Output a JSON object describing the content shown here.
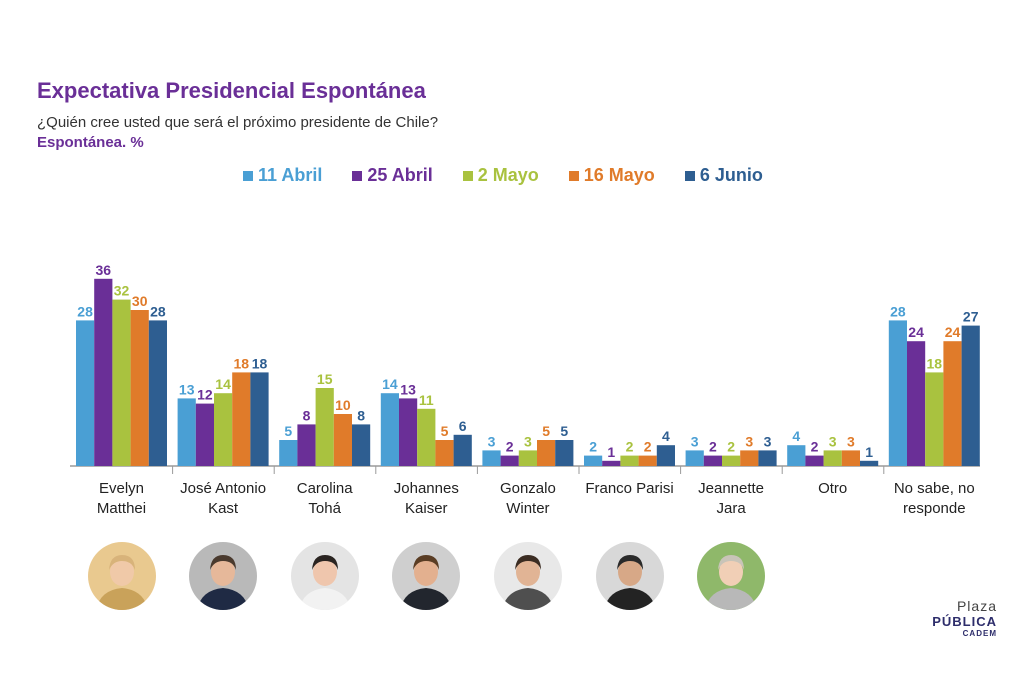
{
  "header": {
    "title": "Expectativa Presidencial Espontánea",
    "subtitle": "¿Quién cree usted que será el próximo presidente de Chile?",
    "unit_note": "Espontánea. %"
  },
  "chart_data": {
    "type": "bar",
    "title": "Expectativa Presidencial Espontánea",
    "subtitle": "¿Quién cree usted que será el próximo presidente de Chile?",
    "ylabel": "",
    "xlabel": "",
    "legend_position": "top",
    "grid": false,
    "categories": [
      [
        "Evelyn",
        "Matthei"
      ],
      [
        "José Antonio",
        "Kast"
      ],
      [
        "Carolina",
        "Tohá"
      ],
      [
        "Johannes",
        "Kaiser"
      ],
      [
        "Gonzalo",
        "Winter"
      ],
      [
        "Franco Parisi"
      ],
      [
        "Jeannette",
        "Jara"
      ],
      [
        "Otro"
      ],
      [
        "No sabe, no",
        "responde"
      ]
    ],
    "series": [
      {
        "name": "11 Abril",
        "color": "#4a9fd4",
        "values": [
          28,
          13,
          5,
          14,
          3,
          2,
          3,
          4,
          28
        ]
      },
      {
        "name": "25 Abril",
        "color": "#6a2f97",
        "values": [
          36,
          12,
          8,
          13,
          2,
          1,
          2,
          2,
          24
        ]
      },
      {
        "name": "2 Mayo",
        "color": "#a9c23f",
        "values": [
          32,
          14,
          15,
          11,
          3,
          2,
          2,
          3,
          18
        ]
      },
      {
        "name": "16 Mayo",
        "color": "#e07b2a",
        "values": [
          30,
          18,
          10,
          5,
          5,
          2,
          3,
          3,
          24
        ]
      },
      {
        "name": "6 Junio",
        "color": "#2e5e91",
        "values": [
          28,
          18,
          8,
          6,
          5,
          4,
          3,
          1,
          27
        ]
      }
    ]
  },
  "photos": [
    {
      "icon": "person-photo-icon",
      "bg": "#e9c98f",
      "skin": "#f0c9a8",
      "hair": "#d8b37a",
      "clothes": "#c9a25a"
    },
    {
      "icon": "person-photo-icon",
      "bg": "#b9b9b9",
      "skin": "#e6b89a",
      "hair": "#4a3a2e",
      "clothes": "#1f2a44"
    },
    {
      "icon": "person-photo-icon",
      "bg": "#e4e4e4",
      "skin": "#efc6ad",
      "hair": "#2a2421",
      "clothes": "#f2f2f2"
    },
    {
      "icon": "person-photo-icon",
      "bg": "#cfcfcf",
      "skin": "#e3b08f",
      "hair": "#5a3d24",
      "clothes": "#22262e"
    },
    {
      "icon": "person-photo-icon",
      "bg": "#e8e8e8",
      "skin": "#e1b495",
      "hair": "#3b2c22",
      "clothes": "#4f4f4f"
    },
    {
      "icon": "person-photo-icon",
      "bg": "#d8d8d8",
      "skin": "#d7a887",
      "hair": "#2a2a2a",
      "clothes": "#232323"
    },
    {
      "icon": "person-photo-icon",
      "bg": "#8fb86a",
      "skin": "#f1cfb6",
      "hair": "#c9c4b8",
      "clothes": "#b8b8b8"
    }
  ],
  "brand": {
    "line1": "Plaza",
    "line2": "PÚBLICA",
    "line3": "CADEM",
    "icon": "plaza-publica-logo-icon",
    "mark_color": "#6a4fd1"
  }
}
